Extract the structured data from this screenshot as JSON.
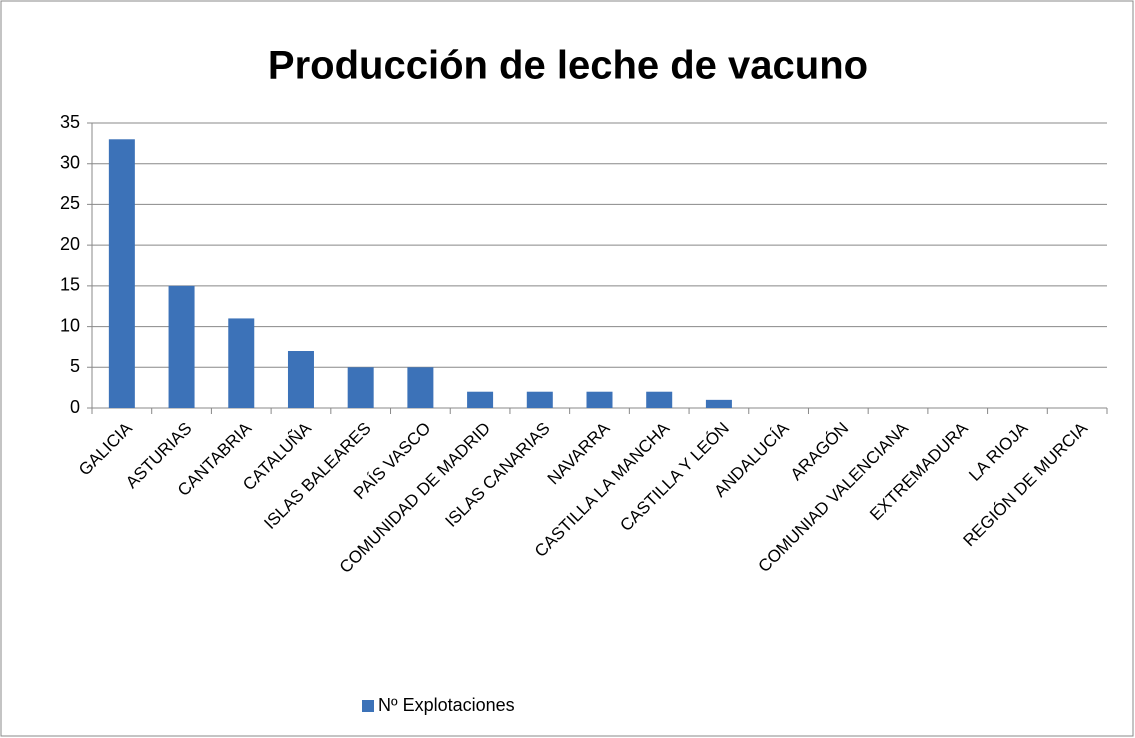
{
  "chart_data": {
    "type": "bar",
    "title": "Producción de leche de vacuno",
    "categories": [
      "GALICIA",
      "ASTURIAS",
      "CANTABRIA",
      "CATALUÑA",
      "ISLAS BALEARES",
      "PAÍS VASCO",
      "COMUNIDAD DE MADRID",
      "ISLAS CANARIAS",
      "NAVARRA",
      "CASTILLA LA MANCHA",
      "CASTILLA Y LEÓN",
      "ANDALUCÍA",
      "ARAGÓN",
      "COMUNIAD VALENCIANA",
      "EXTREMADURA",
      "LA RIOJA",
      "REGIÓN DE MURCIA"
    ],
    "series": [
      {
        "name": "Nº Explotaciones",
        "color": "#3c72b8",
        "values": [
          33,
          15,
          11,
          7,
          5,
          5,
          2,
          2,
          2,
          2,
          1,
          0,
          0,
          0,
          0,
          0,
          0
        ]
      }
    ],
    "ylim": [
      0,
      35
    ],
    "yticks": [
      0,
      5,
      10,
      15,
      20,
      25,
      30,
      35
    ],
    "grid": true,
    "legend": "bottom"
  }
}
